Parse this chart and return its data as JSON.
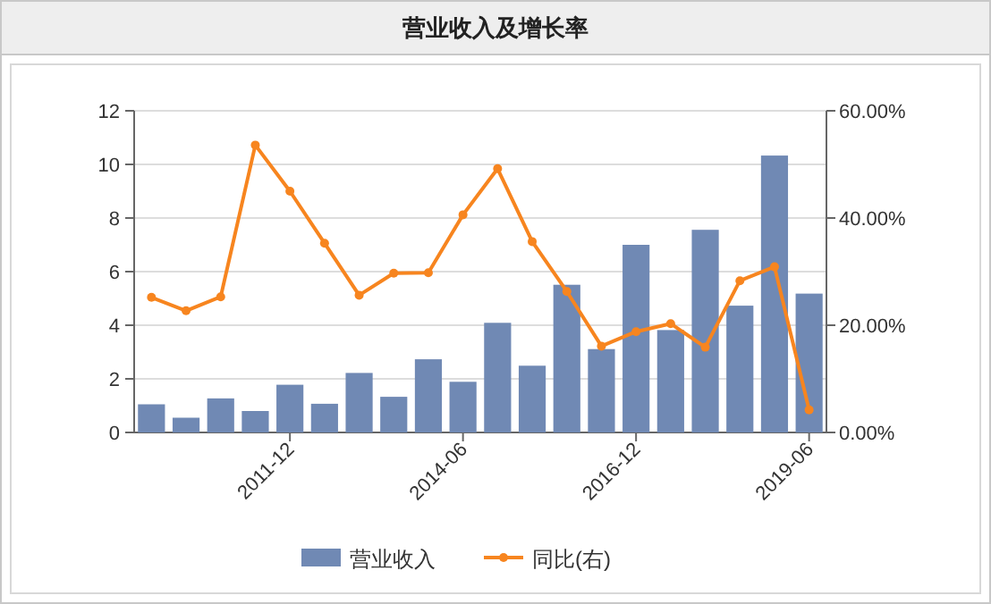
{
  "chart_data": {
    "type": "bar",
    "title": "营业收入及增长率",
    "categories": [
      null,
      null,
      null,
      null,
      "2011-12",
      null,
      null,
      null,
      null,
      "2014-06",
      null,
      null,
      null,
      null,
      "2016-12",
      null,
      null,
      null,
      null,
      "2019-06"
    ],
    "series": [
      {
        "name": "营业收入",
        "color": "#7089b4",
        "values": [
          1.05,
          0.55,
          1.27,
          0.8,
          1.78,
          1.07,
          2.22,
          1.33,
          2.73,
          1.89,
          4.09,
          2.49,
          5.51,
          3.11,
          7.0,
          3.82,
          7.56,
          4.73,
          10.33,
          5.18
        ]
      },
      {
        "name": "同比(右)",
        "type": "line",
        "axis": "y2",
        "color": "#f7851f",
        "values": [
          25.2,
          22.7,
          25.3,
          53.6,
          45.0,
          35.3,
          25.6,
          29.7,
          29.8,
          40.6,
          49.2,
          35.6,
          26.3,
          16.1,
          18.8,
          20.3,
          15.9,
          28.3,
          30.9,
          4.2
        ]
      }
    ],
    "ylim": [
      0,
      12
    ],
    "yticks": [
      0,
      2,
      4,
      6,
      8,
      10,
      12
    ],
    "y2lim": [
      0,
      60
    ],
    "y2ticks": [
      {
        "value": 0,
        "label": "0.00%"
      },
      {
        "value": 20,
        "label": "20.00%"
      },
      {
        "value": 40,
        "label": "40.00%"
      },
      {
        "value": 60,
        "label": "60.00%"
      }
    ],
    "grid": "y",
    "legend": "bottom",
    "marker": "circle",
    "line_style": "solid"
  }
}
